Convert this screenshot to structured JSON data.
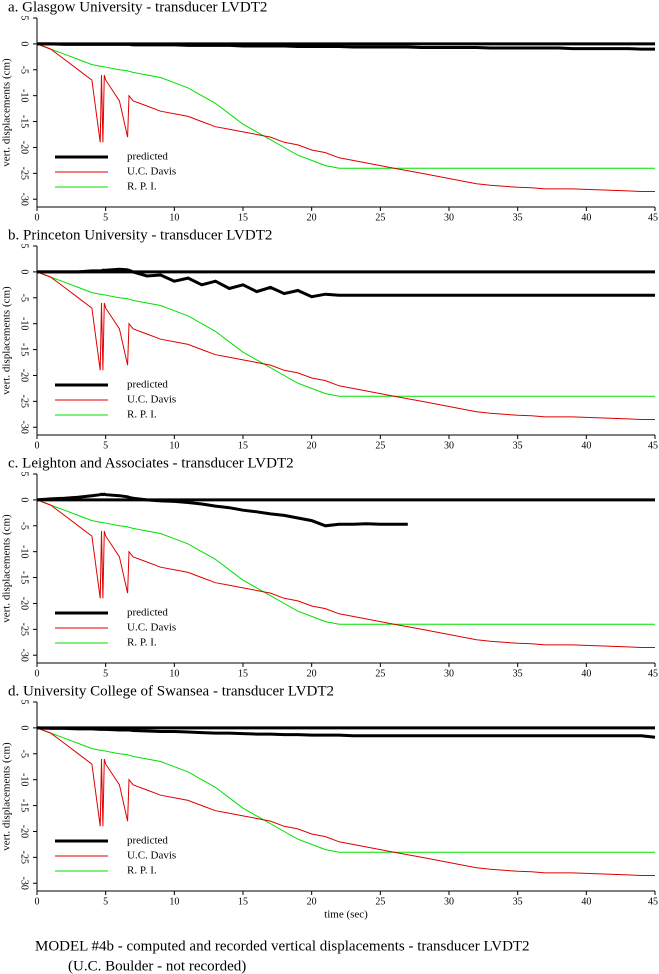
{
  "chart_data": [
    {
      "type": "line",
      "title": "a. Glasgow University - transducer LVDT2",
      "ylabel": "vert. displacements (cm)",
      "x": [
        0,
        1,
        2,
        3,
        4,
        4.6,
        4.7,
        4.8,
        4.9,
        5,
        6,
        6.6,
        6.7,
        7,
        8,
        9,
        10,
        11,
        12,
        13,
        14,
        15,
        16,
        17,
        18,
        19,
        20,
        21,
        22,
        23,
        24,
        25,
        26,
        27,
        28,
        29,
        30,
        31,
        32,
        33,
        34,
        35,
        36,
        37,
        38,
        39,
        40,
        41,
        42,
        43,
        44,
        45
      ],
      "xlim": [
        0,
        45
      ],
      "xticks": [
        0,
        5,
        10,
        15,
        20,
        25,
        30,
        35,
        40,
        45
      ],
      "ylim": [
        -31.5,
        5
      ],
      "yticks": [
        5,
        0,
        -5,
        -10,
        -15,
        -20,
        -25,
        -30
      ],
      "series": [
        {
          "name": "predicted",
          "color": "#000000",
          "values": [
            0,
            0,
            -0.1,
            -0.1,
            -0.1,
            -0.1,
            -0.1,
            -0.1,
            -0.1,
            -0.1,
            -0.1,
            -0.1,
            -0.1,
            -0.2,
            -0.2,
            -0.2,
            -0.2,
            -0.3,
            -0.3,
            -0.3,
            -0.3,
            -0.4,
            -0.4,
            -0.4,
            -0.4,
            -0.5,
            -0.5,
            -0.5,
            -0.5,
            -0.6,
            -0.6,
            -0.6,
            -0.6,
            -0.6,
            -0.7,
            -0.7,
            -0.7,
            -0.7,
            -0.7,
            -0.8,
            -0.8,
            -0.8,
            -0.8,
            -0.8,
            -0.8,
            -0.9,
            -0.9,
            -0.9,
            -0.9,
            -0.9,
            -1,
            -1
          ]
        },
        {
          "name": "U.C. Davis",
          "color": "#e00000",
          "values": [
            0,
            -1,
            -3,
            -5,
            -7,
            -19,
            -6,
            -19,
            -6,
            -7,
            -11,
            -18,
            -10,
            -11,
            -12,
            -13,
            -13.5,
            -14,
            -15,
            -16,
            -16.5,
            -17,
            -17.5,
            -18,
            -19,
            -19.5,
            -20.5,
            -21,
            -22,
            -22.5,
            -23,
            -23.5,
            -24,
            -24.5,
            -25,
            -25.5,
            -26,
            -26.5,
            -27,
            -27.3,
            -27.5,
            -27.7,
            -27.8,
            -28,
            -28,
            -28,
            -28.1,
            -28.2,
            -28.3,
            -28.4,
            -28.5,
            -28.5
          ]
        },
        {
          "name": "R. P. I.",
          "color": "#00e000",
          "values": [
            0,
            -1,
            -2,
            -3,
            -4,
            -4.3,
            -4.3,
            -4.4,
            -4.4,
            -4.5,
            -5,
            -5.2,
            -5.3,
            -5.5,
            -6,
            -6.5,
            -7.5,
            -8.5,
            -10,
            -11.5,
            -13.5,
            -15.5,
            -17,
            -18.5,
            -20,
            -21.5,
            -22.5,
            -23.5,
            -24,
            -24,
            -24,
            -24,
            -24,
            -24,
            -24,
            -24,
            -24,
            -24,
            -24,
            -24,
            -24,
            -24,
            -24,
            -24,
            -24,
            -24,
            -24,
            -24,
            -24,
            -24,
            -24,
            -24
          ]
        }
      ]
    },
    {
      "type": "line",
      "title": "b. Princeton University - transducer LVDT2",
      "ylabel": "vert. displacements (cm)",
      "x": [
        0,
        1,
        2,
        3,
        4,
        4.6,
        4.7,
        4.8,
        4.9,
        5,
        6,
        6.6,
        6.7,
        7,
        8,
        9,
        10,
        11,
        12,
        13,
        14,
        15,
        16,
        17,
        18,
        19,
        20,
        21,
        22,
        23,
        24,
        25,
        26,
        27,
        28,
        29,
        30,
        31,
        32,
        33,
        34,
        35,
        36,
        37,
        38,
        39,
        40,
        41,
        42,
        43,
        44,
        45
      ],
      "xlim": [
        0,
        45
      ],
      "xticks": [
        0,
        5,
        10,
        15,
        20,
        25,
        30,
        35,
        40,
        45
      ],
      "ylim": [
        -31.5,
        5
      ],
      "yticks": [
        5,
        0,
        -5,
        -10,
        -15,
        -20,
        -25,
        -30
      ],
      "series": [
        {
          "name": "predicted",
          "color": "#000000",
          "values": [
            0,
            0,
            0,
            0,
            0.2,
            0.2,
            0.2,
            0.3,
            0.3,
            0.3,
            0.5,
            0.4,
            0.3,
            0,
            -0.8,
            -0.6,
            -1.8,
            -1.2,
            -2.5,
            -1.8,
            -3.2,
            -2.5,
            -3.8,
            -3,
            -4.2,
            -3.6,
            -4.8,
            -4.3,
            -4.5,
            -4.5,
            -4.5,
            -4.5,
            -4.5,
            -4.5,
            -4.5,
            -4.5,
            -4.5,
            -4.5,
            -4.5,
            -4.5,
            -4.5,
            -4.5,
            -4.5,
            -4.5,
            -4.5,
            -4.5,
            -4.5,
            -4.5,
            -4.5,
            -4.5,
            -4.5,
            -4.5
          ]
        },
        {
          "name": "U.C. Davis",
          "color": "#e00000",
          "values": [
            0,
            -1,
            -3,
            -5,
            -7,
            -19,
            -6,
            -19,
            -6,
            -7,
            -11,
            -18,
            -10,
            -11,
            -12,
            -13,
            -13.5,
            -14,
            -15,
            -16,
            -16.5,
            -17,
            -17.5,
            -18,
            -19,
            -19.5,
            -20.5,
            -21,
            -22,
            -22.5,
            -23,
            -23.5,
            -24,
            -24.5,
            -25,
            -25.5,
            -26,
            -26.5,
            -27,
            -27.3,
            -27.5,
            -27.7,
            -27.8,
            -28,
            -28,
            -28,
            -28.1,
            -28.2,
            -28.3,
            -28.4,
            -28.5,
            -28.5
          ]
        },
        {
          "name": "R. P. I.",
          "color": "#00e000",
          "values": [
            0,
            -1,
            -2,
            -3,
            -4,
            -4.3,
            -4.3,
            -4.4,
            -4.4,
            -4.5,
            -5,
            -5.2,
            -5.3,
            -5.5,
            -6,
            -6.5,
            -7.5,
            -8.5,
            -10,
            -11.5,
            -13.5,
            -15.5,
            -17,
            -18.5,
            -20,
            -21.5,
            -22.5,
            -23.5,
            -24,
            -24,
            -24,
            -24,
            -24,
            -24,
            -24,
            -24,
            -24,
            -24,
            -24,
            -24,
            -24,
            -24,
            -24,
            -24,
            -24,
            -24,
            -24,
            -24,
            -24,
            -24,
            -24,
            -24
          ]
        }
      ]
    },
    {
      "type": "line",
      "title": "c. Leighton and Associates - transducer LVDT2",
      "ylabel": "vert. displacements (cm)",
      "x": [
        0,
        1,
        2,
        3,
        4,
        4.6,
        4.7,
        4.8,
        4.9,
        5,
        6,
        6.6,
        6.7,
        7,
        8,
        9,
        10,
        11,
        12,
        13,
        14,
        15,
        16,
        17,
        18,
        19,
        20,
        21,
        22,
        23,
        24,
        25,
        26,
        27,
        28,
        29,
        30,
        31,
        32,
        33,
        34,
        35,
        36,
        37,
        38,
        39,
        40,
        41,
        42,
        43,
        44,
        45
      ],
      "xlim": [
        0,
        45
      ],
      "xticks": [
        0,
        5,
        10,
        15,
        20,
        25,
        30,
        35,
        40,
        45
      ],
      "ylim": [
        -31.5,
        5
      ],
      "yticks": [
        5,
        0,
        -5,
        -10,
        -15,
        -20,
        -25,
        -30
      ],
      "series": [
        {
          "name": "predicted",
          "color": "#000000",
          "values": [
            0,
            0.2,
            0.3,
            0.5,
            0.8,
            1,
            1.1,
            1,
            1.1,
            1,
            0.8,
            0.6,
            0.5,
            0.3,
            0,
            -0.2,
            -0.3,
            -0.5,
            -0.8,
            -1.2,
            -1.5,
            -2,
            -2.3,
            -2.7,
            -3,
            -3.5,
            -4,
            -5,
            -4.7,
            -4.7,
            -4.6,
            -4.7,
            -4.7,
            -4.7,
            null,
            null,
            null,
            null,
            null,
            null,
            null,
            null,
            null,
            null,
            null,
            null,
            null,
            null,
            null,
            null,
            null,
            null
          ]
        },
        {
          "name": "U.C. Davis",
          "color": "#e00000",
          "values": [
            0,
            -1,
            -3,
            -5,
            -7,
            -19,
            -6,
            -19,
            -6,
            -7,
            -11,
            -18,
            -10,
            -11,
            -12,
            -13,
            -13.5,
            -14,
            -15,
            -16,
            -16.5,
            -17,
            -17.5,
            -18,
            -19,
            -19.5,
            -20.5,
            -21,
            -22,
            -22.5,
            -23,
            -23.5,
            -24,
            -24.5,
            -25,
            -25.5,
            -26,
            -26.5,
            -27,
            -27.3,
            -27.5,
            -27.7,
            -27.8,
            -28,
            -28,
            -28,
            -28.1,
            -28.2,
            -28.3,
            -28.4,
            -28.5,
            -28.5
          ]
        },
        {
          "name": "R. P. I.",
          "color": "#00e000",
          "values": [
            0,
            -1,
            -2,
            -3,
            -4,
            -4.3,
            -4.3,
            -4.4,
            -4.4,
            -4.5,
            -5,
            -5.2,
            -5.3,
            -5.5,
            -6,
            -6.5,
            -7.5,
            -8.5,
            -10,
            -11.5,
            -13.5,
            -15.5,
            -17,
            -18.5,
            -20,
            -21.5,
            -22.5,
            -23.5,
            -24,
            -24,
            -24,
            -24,
            -24,
            -24,
            -24,
            -24,
            -24,
            -24,
            -24,
            -24,
            -24,
            -24,
            -24,
            -24,
            -24,
            -24,
            -24,
            -24,
            -24,
            -24,
            -24,
            -24
          ]
        }
      ]
    },
    {
      "type": "line",
      "title": "d. University College of Swansea - transducer LVDT2",
      "ylabel": "vert. displacements (cm)",
      "xlabel": "time (sec)",
      "x": [
        0,
        1,
        2,
        3,
        4,
        4.6,
        4.7,
        4.8,
        4.9,
        5,
        6,
        6.6,
        6.7,
        7,
        8,
        9,
        10,
        11,
        12,
        13,
        14,
        15,
        16,
        17,
        18,
        19,
        20,
        21,
        22,
        23,
        24,
        25,
        26,
        27,
        28,
        29,
        30,
        31,
        32,
        33,
        34,
        35,
        36,
        37,
        38,
        39,
        40,
        41,
        42,
        43,
        44,
        45
      ],
      "xlim": [
        0,
        45
      ],
      "xticks": [
        0,
        5,
        10,
        15,
        20,
        25,
        30,
        35,
        40,
        45
      ],
      "ylim": [
        -31.5,
        5
      ],
      "yticks": [
        5,
        0,
        -5,
        -10,
        -15,
        -20,
        -25,
        -30
      ],
      "series": [
        {
          "name": "predicted",
          "color": "#000000",
          "values": [
            0,
            -0.1,
            -0.1,
            -0.2,
            -0.2,
            -0.3,
            -0.3,
            -0.3,
            -0.3,
            -0.3,
            -0.4,
            -0.4,
            -0.4,
            -0.5,
            -0.6,
            -0.7,
            -0.7,
            -0.8,
            -0.9,
            -1,
            -1,
            -1.1,
            -1.2,
            -1.2,
            -1.3,
            -1.3,
            -1.4,
            -1.4,
            -1.4,
            -1.5,
            -1.5,
            -1.5,
            -1.5,
            -1.5,
            -1.5,
            -1.5,
            -1.5,
            -1.5,
            -1.5,
            -1.5,
            -1.5,
            -1.5,
            -1.5,
            -1.5,
            -1.5,
            -1.5,
            -1.5,
            -1.5,
            -1.5,
            -1.5,
            -1.5,
            -1.8
          ]
        },
        {
          "name": "U.C. Davis",
          "color": "#e00000",
          "values": [
            0,
            -1,
            -3,
            -5,
            -7,
            -19,
            -6,
            -19,
            -6,
            -7,
            -11,
            -18,
            -10,
            -11,
            -12,
            -13,
            -13.5,
            -14,
            -15,
            -16,
            -16.5,
            -17,
            -17.5,
            -18,
            -19,
            -19.5,
            -20.5,
            -21,
            -22,
            -22.5,
            -23,
            -23.5,
            -24,
            -24.5,
            -25,
            -25.5,
            -26,
            -26.5,
            -27,
            -27.3,
            -27.5,
            -27.7,
            -27.8,
            -28,
            -28,
            -28,
            -28.1,
            -28.2,
            -28.3,
            -28.4,
            -28.5,
            -28.5
          ]
        },
        {
          "name": "R. P. I.",
          "color": "#00e000",
          "values": [
            0,
            -1,
            -2,
            -3,
            -4,
            -4.3,
            -4.3,
            -4.4,
            -4.4,
            -4.5,
            -5,
            -5.2,
            -5.3,
            -5.5,
            -6,
            -6.5,
            -7.5,
            -8.5,
            -10,
            -11.5,
            -13.5,
            -15.5,
            -17,
            -18.5,
            -20,
            -21.5,
            -22.5,
            -23.5,
            -24,
            -24,
            -24,
            -24,
            -24,
            -24,
            -24,
            -24,
            -24,
            -24,
            -24,
            -24,
            -24,
            -24,
            -24,
            -24,
            -24,
            -24,
            -24,
            -24,
            -24,
            -24,
            -24,
            -24
          ]
        }
      ]
    }
  ],
  "caption": [
    "MODEL #4b - computed and recorded vertical displacements - transducer LVDT2",
    "(U.C. Boulder - not recorded)"
  ]
}
